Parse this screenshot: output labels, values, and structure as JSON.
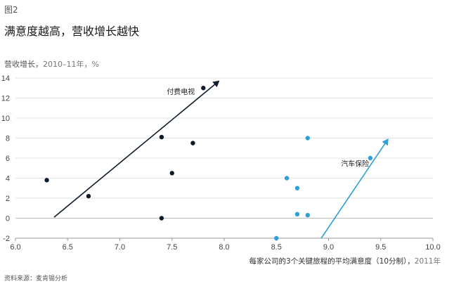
{
  "figure_label": "图2",
  "chart_data": {
    "type": "scatter",
    "title": "满意度越高，营收增长越快",
    "ylabel": "营收增长，",
    "ylabel_unit": "2010–11年，%",
    "xlabel": "每家公司的3个关键旅程的平均满意度（10分制），",
    "xlabel_unit": "2011年",
    "source": "资料来源：麦肯锡分析",
    "xlim": [
      6.0,
      10.0
    ],
    "ylim": [
      -2,
      14
    ],
    "x_ticks": [
      "6.0",
      "6.5",
      "7.0",
      "7.5",
      "8.0",
      "8.5",
      "9.0",
      "9.5",
      "10.0"
    ],
    "y_ticks": [
      "-2",
      "0",
      "2",
      "4",
      "6",
      "8",
      "10",
      "12",
      "14"
    ],
    "grid": true,
    "series": [
      {
        "name": "付费电视",
        "color": "#0d1b2a",
        "points": [
          {
            "x": 6.3,
            "y": 3.8
          },
          {
            "x": 6.7,
            "y": 2.2
          },
          {
            "x": 7.4,
            "y": 8.1
          },
          {
            "x": 7.4,
            "y": 0.0
          },
          {
            "x": 7.5,
            "y": 4.5
          },
          {
            "x": 7.7,
            "y": 7.5
          },
          {
            "x": 7.8,
            "y": 13.0
          }
        ],
        "trend": {
          "x1": 6.37,
          "y1": 0.1,
          "x2": 7.95,
          "y2": 13.7
        },
        "label_at": {
          "x": 7.45,
          "y": 12.4
        }
      },
      {
        "name": "汽车保险",
        "color": "#2f9fd8",
        "points": [
          {
            "x": 8.5,
            "y": -2.0
          },
          {
            "x": 8.6,
            "y": 4.0
          },
          {
            "x": 8.7,
            "y": 3.0
          },
          {
            "x": 8.7,
            "y": 0.4
          },
          {
            "x": 8.8,
            "y": 8.0
          },
          {
            "x": 8.8,
            "y": 0.3
          },
          {
            "x": 9.4,
            "y": 6.0
          }
        ],
        "trend": {
          "x1": 8.93,
          "y1": -2.0,
          "x2": 9.57,
          "y2": 7.9
        },
        "label_at": {
          "x": 9.12,
          "y": 5.2
        }
      }
    ]
  }
}
